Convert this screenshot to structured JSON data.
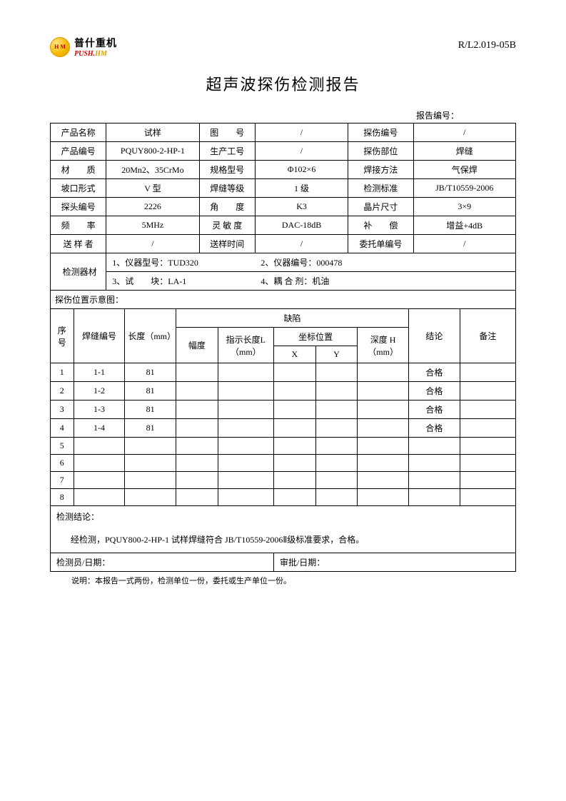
{
  "header": {
    "logo_cn": "普什重机",
    "logo_en_left": "PUSH",
    "logo_en_dot": ".",
    "logo_en_right": "HM",
    "doc_code": "R/L2.019-05B"
  },
  "title": "超声波探伤检测报告",
  "report_no_label": "报告编号：",
  "info": {
    "r1": {
      "l1": "产品名称",
      "v1": "试样",
      "l2": "图　　号",
      "v2": "/",
      "l3": "探伤编号",
      "v3": "/"
    },
    "r2": {
      "l1": "产品编号",
      "v1": "PQUY800-2-HP-1",
      "l2": "生产工号",
      "v2": "/",
      "l3": "探伤部位",
      "v3": "焊缝"
    },
    "r3": {
      "l1": "材　　质",
      "v1": "20Mn2、35CrMo",
      "l2": "规格型号",
      "v2": "Φ102×6",
      "l3": "焊接方法",
      "v3": "气保焊"
    },
    "r4": {
      "l1": "坡口形式",
      "v1": "V 型",
      "l2": "焊缝等级",
      "v2": "1 级",
      "l3": "检测标准",
      "v3": "JB/T10559-2006"
    },
    "r5": {
      "l1": "探头编号",
      "v1": "2226",
      "l2": "角　　度",
      "v2": "K3",
      "l3": "晶片尺寸",
      "v3": "3×9"
    },
    "r6": {
      "l1": "频　　率",
      "v1": "5MHz",
      "l2": "灵 敏 度",
      "v2": "DAC-18dB",
      "l3": "补　　偿",
      "v3": "增益+4dB"
    },
    "r7": {
      "l1": "送 样 者",
      "v1": "/",
      "l2": "送样时间",
      "v2": "/",
      "l3": "委托单编号",
      "v3": "/"
    }
  },
  "equipment": {
    "label": "检测器材",
    "item1": "1、仪器型号：TUD320",
    "item2": "2、仪器编号：000478",
    "item3": "3、试　　块：LA-1",
    "item4": "4、耦 合 剂：机油"
  },
  "diagram_label": "探伤位置示意图：",
  "defect": {
    "h_seq": "序号",
    "h_weldno": "焊缝编号",
    "h_length": "长度（mm）",
    "h_defect": "缺陷",
    "h_amp": "幅度",
    "h_indlen": "指示长度L（mm）",
    "h_coord": "坐标位置",
    "h_x": "X",
    "h_y": "Y",
    "h_depth": "深度 H（mm）",
    "h_concl": "结论",
    "h_remark": "备注",
    "rows": [
      {
        "seq": "1",
        "weldno": "1-1",
        "length": "81",
        "amp": "",
        "indlen": "",
        "x": "",
        "y": "",
        "depth": "",
        "concl": "合格",
        "remark": ""
      },
      {
        "seq": "2",
        "weldno": "1-2",
        "length": "81",
        "amp": "",
        "indlen": "",
        "x": "",
        "y": "",
        "depth": "",
        "concl": "合格",
        "remark": ""
      },
      {
        "seq": "3",
        "weldno": "1-3",
        "length": "81",
        "amp": "",
        "indlen": "",
        "x": "",
        "y": "",
        "depth": "",
        "concl": "合格",
        "remark": ""
      },
      {
        "seq": "4",
        "weldno": "1-4",
        "length": "81",
        "amp": "",
        "indlen": "",
        "x": "",
        "y": "",
        "depth": "",
        "concl": "合格",
        "remark": ""
      },
      {
        "seq": "5",
        "weldno": "",
        "length": "",
        "amp": "",
        "indlen": "",
        "x": "",
        "y": "",
        "depth": "",
        "concl": "",
        "remark": ""
      },
      {
        "seq": "6",
        "weldno": "",
        "length": "",
        "amp": "",
        "indlen": "",
        "x": "",
        "y": "",
        "depth": "",
        "concl": "",
        "remark": ""
      },
      {
        "seq": "7",
        "weldno": "",
        "length": "",
        "amp": "",
        "indlen": "",
        "x": "",
        "y": "",
        "depth": "",
        "concl": "",
        "remark": ""
      },
      {
        "seq": "8",
        "weldno": "",
        "length": "",
        "amp": "",
        "indlen": "",
        "x": "",
        "y": "",
        "depth": "",
        "concl": "",
        "remark": ""
      }
    ]
  },
  "conclusion": {
    "label": "检测结论：",
    "body": "经检测，PQUY800-2-HP-1 试样焊缝符合 JB/T10559-2006Ⅱ级标准要求，合格。"
  },
  "sign": {
    "inspector": "检测员/日期：",
    "approver": "审批/日期："
  },
  "footnote": "说明：本报告一式两份，检测单位一份，委托或生产单位一份。"
}
